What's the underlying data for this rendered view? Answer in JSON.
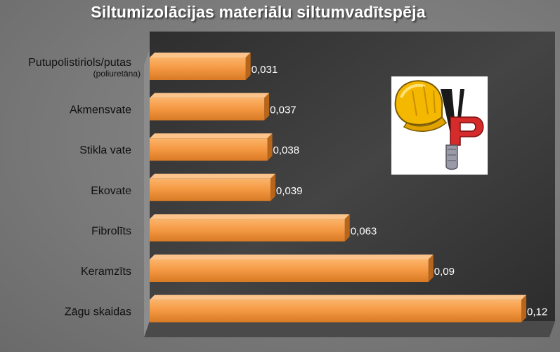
{
  "chart_data": {
    "type": "bar",
    "orientation": "horizontal",
    "title": "Siltumizolācijas materiālu siltumvadītspēja",
    "categories": [
      {
        "main": "Putupolistiriols/putas",
        "sub": "(poliuretāna)"
      },
      {
        "main": "Akmensvate",
        "sub": ""
      },
      {
        "main": "Stikla vate",
        "sub": ""
      },
      {
        "main": "Ekovate",
        "sub": ""
      },
      {
        "main": "Fibrolīts",
        "sub": ""
      },
      {
        "main": "Keramzīts",
        "sub": ""
      },
      {
        "main": "Zāgu skaidas",
        "sub": ""
      }
    ],
    "values": [
      0.031,
      0.037,
      0.038,
      0.039,
      0.063,
      0.09,
      0.12
    ],
    "value_labels": [
      "0,031",
      "0,037",
      "0,038",
      "0,039",
      "0,063",
      "0,09",
      "0,12"
    ],
    "xlim": [
      0,
      0.12
    ],
    "grid": false,
    "bar_color": "#f59a45",
    "plot_background": "#3a3a3a"
  },
  "logo": {
    "name": "construction-helmet-vp-logo",
    "colors": {
      "helmet": "#f5b800",
      "letter_p": "#d62b2b",
      "letter_v": "#1a1a1a"
    }
  }
}
